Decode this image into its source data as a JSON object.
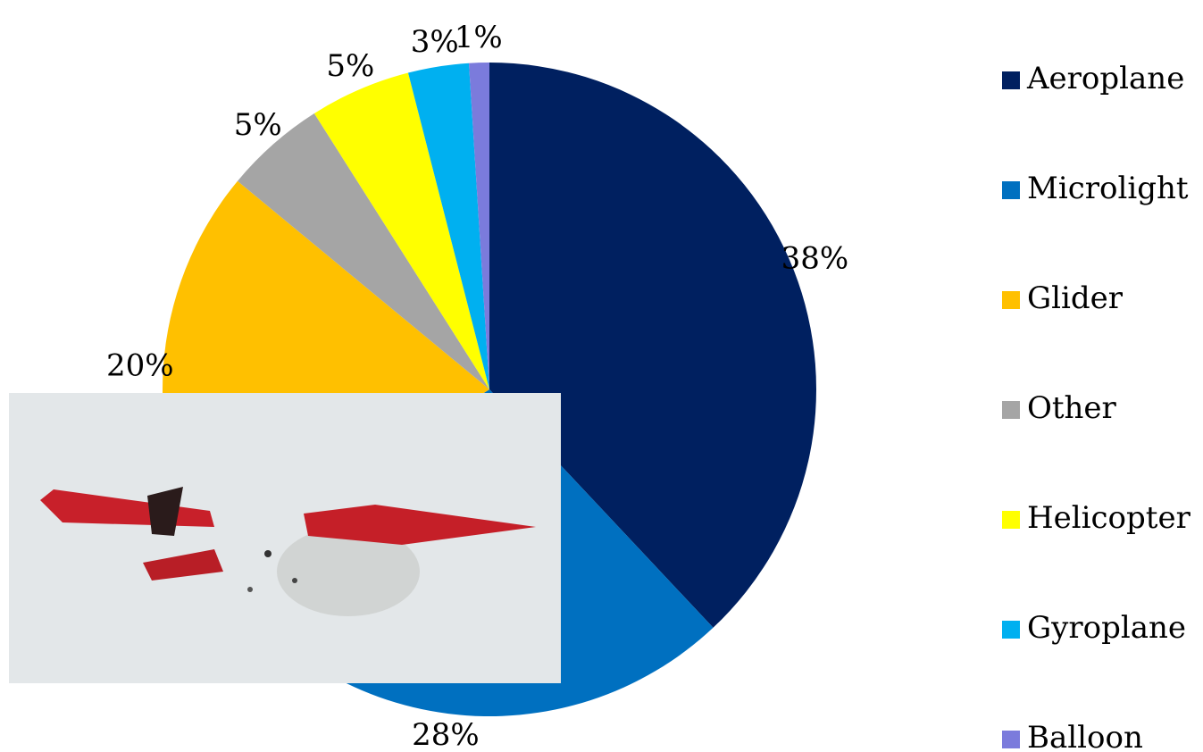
{
  "chart_data": {
    "type": "pie",
    "categories": [
      "Aeroplane",
      "Microlight",
      "Glider",
      "Other",
      "Helicopter",
      "Gyroplane",
      "Balloon"
    ],
    "values": [
      38,
      28,
      20,
      5,
      5,
      3,
      1
    ],
    "value_labels": [
      "38%",
      "28%",
      "20%",
      "5%",
      "5%",
      "3%",
      "1%"
    ],
    "colors": [
      "#002060",
      "#0070c0",
      "#ffc000",
      "#a5a5a5",
      "#ffff00",
      "#00b0f0",
      "#7b7bdc"
    ],
    "legend": "right"
  }
}
